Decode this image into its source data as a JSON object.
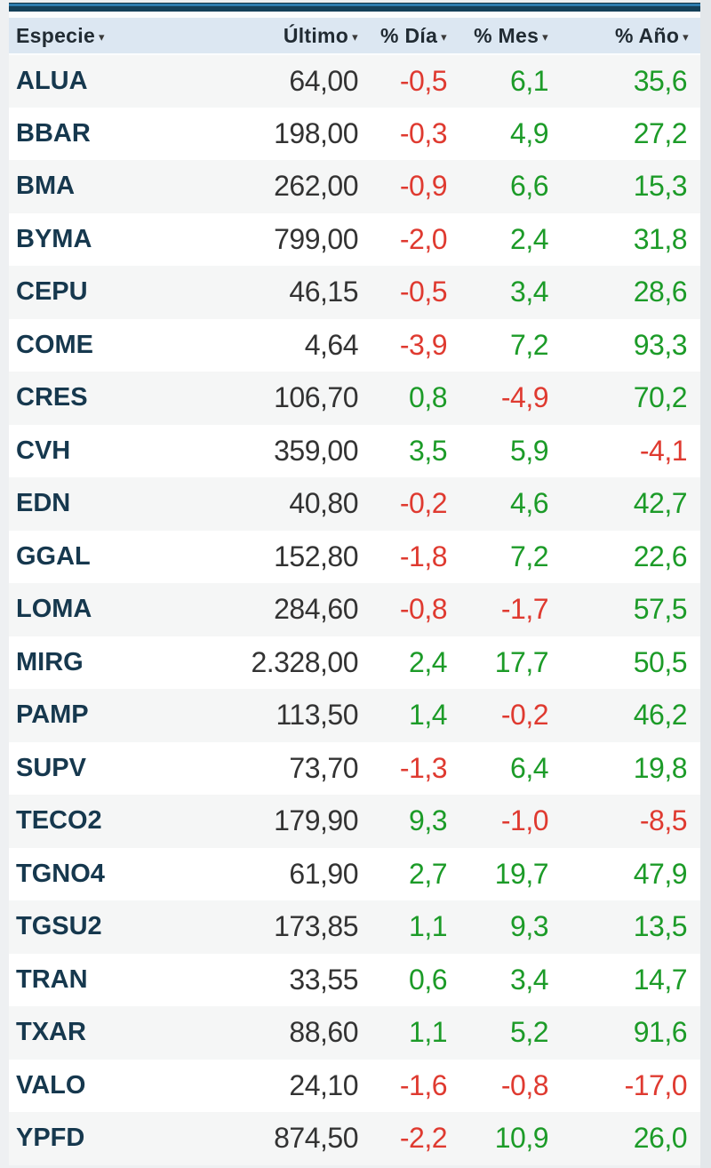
{
  "widget_title": "quotes-panel",
  "table": {
    "sort_icon": "▾",
    "columns": [
      {
        "key": "especie",
        "label": "Especie",
        "align": "left"
      },
      {
        "key": "ultimo",
        "label": "Último",
        "align": "right"
      },
      {
        "key": "dia",
        "label": "% Día",
        "align": "right"
      },
      {
        "key": "mes",
        "label": "% Mes",
        "align": "right"
      },
      {
        "key": "ano",
        "label": "% Año",
        "align": "right"
      }
    ],
    "rows": [
      {
        "symbol": "ALUA",
        "ultimo": "64,00",
        "dia": "-0,5",
        "mes": "6,1",
        "ano": "35,6"
      },
      {
        "symbol": "BBAR",
        "ultimo": "198,00",
        "dia": "-0,3",
        "mes": "4,9",
        "ano": "27,2"
      },
      {
        "symbol": "BMA",
        "ultimo": "262,00",
        "dia": "-0,9",
        "mes": "6,6",
        "ano": "15,3"
      },
      {
        "symbol": "BYMA",
        "ultimo": "799,00",
        "dia": "-2,0",
        "mes": "2,4",
        "ano": "31,8"
      },
      {
        "symbol": "CEPU",
        "ultimo": "46,15",
        "dia": "-0,5",
        "mes": "3,4",
        "ano": "28,6"
      },
      {
        "symbol": "COME",
        "ultimo": "4,64",
        "dia": "-3,9",
        "mes": "7,2",
        "ano": "93,3"
      },
      {
        "symbol": "CRES",
        "ultimo": "106,70",
        "dia": "0,8",
        "mes": "-4,9",
        "ano": "70,2"
      },
      {
        "symbol": "CVH",
        "ultimo": "359,00",
        "dia": "3,5",
        "mes": "5,9",
        "ano": "-4,1"
      },
      {
        "symbol": "EDN",
        "ultimo": "40,80",
        "dia": "-0,2",
        "mes": "4,6",
        "ano": "42,7"
      },
      {
        "symbol": "GGAL",
        "ultimo": "152,80",
        "dia": "-1,8",
        "mes": "7,2",
        "ano": "22,6"
      },
      {
        "symbol": "LOMA",
        "ultimo": "284,60",
        "dia": "-0,8",
        "mes": "-1,7",
        "ano": "57,5"
      },
      {
        "symbol": "MIRG",
        "ultimo": "2.328,00",
        "dia": "2,4",
        "mes": "17,7",
        "ano": "50,5"
      },
      {
        "symbol": "PAMP",
        "ultimo": "113,50",
        "dia": "1,4",
        "mes": "-0,2",
        "ano": "46,2"
      },
      {
        "symbol": "SUPV",
        "ultimo": "73,70",
        "dia": "-1,3",
        "mes": "6,4",
        "ano": "19,8"
      },
      {
        "symbol": "TECO2",
        "ultimo": "179,90",
        "dia": "9,3",
        "mes": "-1,0",
        "ano": "-8,5"
      },
      {
        "symbol": "TGNO4",
        "ultimo": "61,90",
        "dia": "2,7",
        "mes": "19,7",
        "ano": "47,9"
      },
      {
        "symbol": "TGSU2",
        "ultimo": "173,85",
        "dia": "1,1",
        "mes": "9,3",
        "ano": "13,5"
      },
      {
        "symbol": "TRAN",
        "ultimo": "33,55",
        "dia": "0,6",
        "mes": "3,4",
        "ano": "14,7"
      },
      {
        "symbol": "TXAR",
        "ultimo": "88,60",
        "dia": "1,1",
        "mes": "5,2",
        "ano": "91,6"
      },
      {
        "symbol": "VALO",
        "ultimo": "24,10",
        "dia": "-1,6",
        "mes": "-0,8",
        "ano": "-17,0"
      },
      {
        "symbol": "YPFD",
        "ultimo": "874,50",
        "dia": "-2,2",
        "mes": "10,9",
        "ano": "26,0"
      }
    ]
  },
  "colors": {
    "positive": "#1c9b28",
    "negative": "#df3a30",
    "symbol": "#16384e",
    "price": "#333333",
    "header_bg": "#dce7f2",
    "stripe_bg": "#f5f6f6",
    "topbar_navy": "#143f58",
    "topbar_blue": "#2d7bad"
  }
}
